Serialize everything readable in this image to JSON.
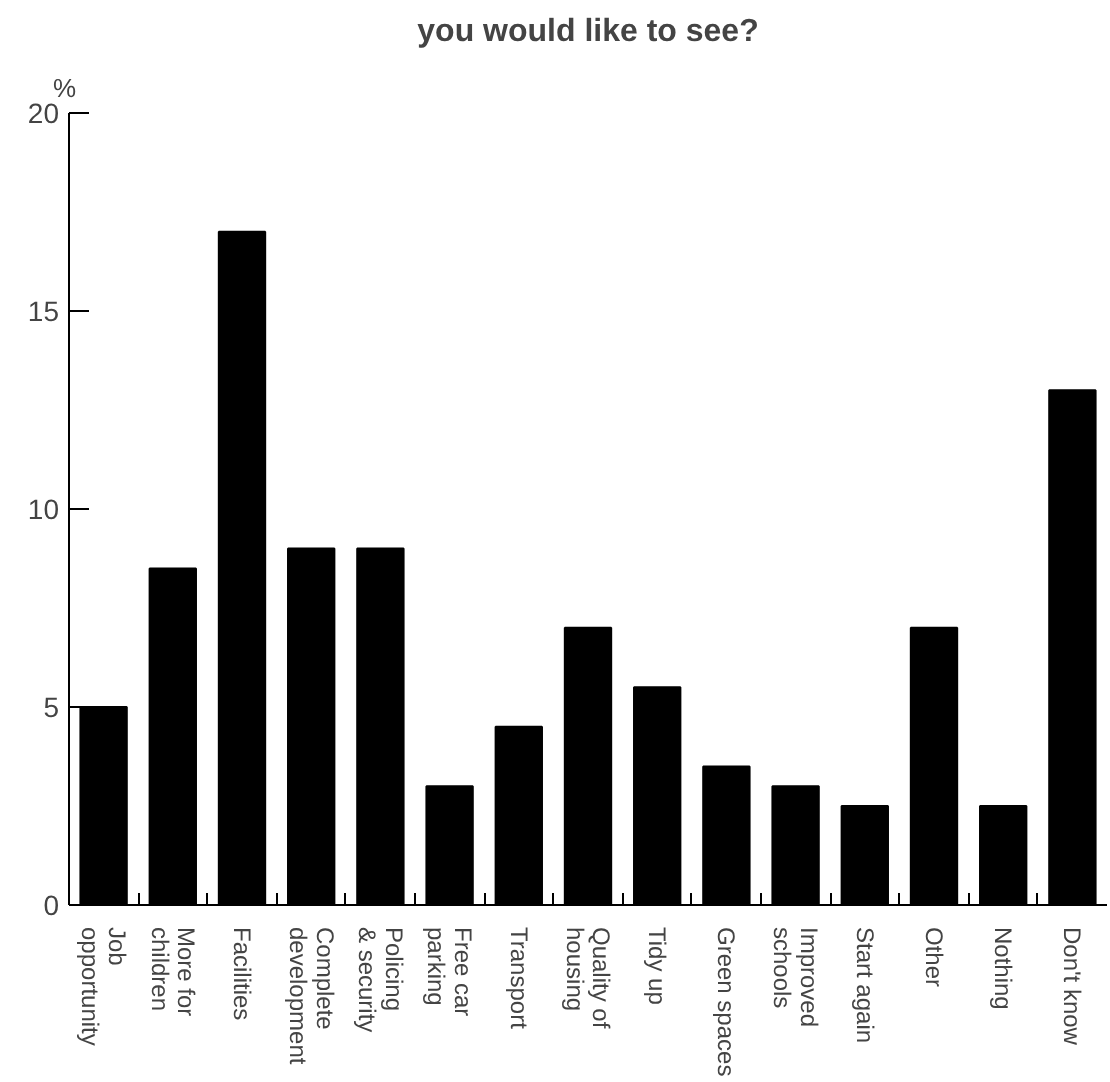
{
  "chart_data": {
    "type": "bar",
    "title": "you would like to see?",
    "ylabel": "%",
    "categories": [
      "Job\nopportunity",
      "More for\nchildren",
      "Facilities",
      "Complete\ndevelopment",
      "Policing\n& security",
      "Free car\nparking",
      "Transport",
      "Quality of\nhousing",
      "Tidy up",
      "Green spaces",
      "Improved\nschools",
      "Start again",
      "Other",
      "Nothing",
      "Don't know"
    ],
    "values": [
      5,
      8.5,
      17,
      9,
      9,
      3,
      4.5,
      7,
      5.5,
      3.5,
      3,
      2.5,
      7,
      2.5,
      13
    ],
    "color": "#000000",
    "ylim": [
      0,
      20
    ],
    "yticks": [
      0,
      5,
      10,
      15,
      20
    ],
    "grid": false
  }
}
